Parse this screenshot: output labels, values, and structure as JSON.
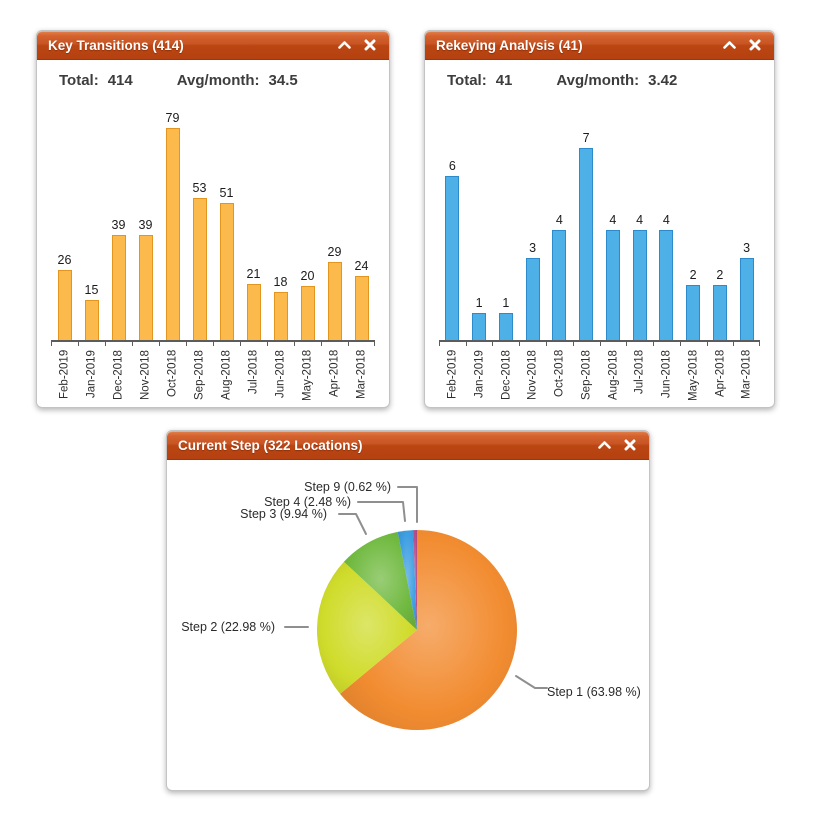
{
  "panels": [
    {
      "title": "Key Transitions (414)",
      "summary": {
        "total_label": "Total:",
        "total_value": "414",
        "avg_label": "Avg/month:",
        "avg_value": "34.5"
      }
    },
    {
      "title": "Rekeying Analysis (41)",
      "summary": {
        "total_label": "Total:",
        "total_value": "41",
        "avg_label": "Avg/month:",
        "avg_value": "3.42"
      }
    },
    {
      "title": "Current Step (322 Locations)"
    }
  ],
  "icons": {
    "collapse": "chevron-up-icon",
    "close": "close-icon"
  },
  "colors": {
    "header_gradient_top": "#d3622e",
    "header_gradient_bottom": "#b54110",
    "orange_bar": "#fcba4d",
    "orange_bar_border": "#e2961f",
    "blue_bar": "#4db1e8",
    "blue_bar_border": "#2d8bcb",
    "axis": "#5c5c5c",
    "callout_line": "#8f8f8f"
  },
  "chart_data": [
    {
      "type": "bar",
      "title": "Key Transitions (414)",
      "total": 414,
      "avg_per_month": 34.5,
      "categories": [
        "Feb-2019",
        "Jan-2019",
        "Dec-2018",
        "Nov-2018",
        "Oct-2018",
        "Sep-2018",
        "Aug-2018",
        "Jul-2018",
        "Jun-2018",
        "May-2018",
        "Apr-2018",
        "Mar-2018"
      ],
      "values": [
        26,
        15,
        39,
        39,
        79,
        53,
        51,
        21,
        18,
        20,
        29,
        24
      ],
      "bar_color": "#fcba4d",
      "bar_border": "#e2961f",
      "xlabel": "",
      "ylabel": "",
      "value_labels": true,
      "legend": false
    },
    {
      "type": "bar",
      "title": "Rekeying Analysis (41)",
      "total": 41,
      "avg_per_month": 3.42,
      "categories": [
        "Feb-2019",
        "Jan-2019",
        "Dec-2018",
        "Nov-2018",
        "Oct-2018",
        "Sep-2018",
        "Aug-2018",
        "Jul-2018",
        "Jun-2018",
        "May-2018",
        "Apr-2018",
        "Mar-2018"
      ],
      "values": [
        6,
        1,
        1,
        3,
        4,
        7,
        4,
        4,
        4,
        2,
        2,
        3
      ],
      "bar_color": "#4db1e8",
      "bar_border": "#2d8bcb",
      "xlabel": "",
      "ylabel": "",
      "value_labels": true,
      "legend": false
    },
    {
      "type": "pie",
      "title": "Current Step (322 Locations)",
      "total_locations": 322,
      "start_angle_deg": 0,
      "direction": "clockwise",
      "slices": [
        {
          "name": "Step 1",
          "pct": 63.98,
          "label": "Step 1 (63.98 %)",
          "color": "#f28c31"
        },
        {
          "name": "Step 2",
          "pct": 22.98,
          "label": "Step 2 (22.98 %)",
          "color": "#d0dc2c"
        },
        {
          "name": "Step 3",
          "pct": 9.94,
          "label": "Step 3 (9.94 %)",
          "color": "#71ba41"
        },
        {
          "name": "Step 4",
          "pct": 2.48,
          "label": "Step 4 (2.48 %)",
          "color": "#3f9fe2"
        },
        {
          "name": "Step 9",
          "pct": 0.62,
          "label": "Step 9 (0.62 %)",
          "color": "#b64e8b"
        }
      ]
    }
  ]
}
